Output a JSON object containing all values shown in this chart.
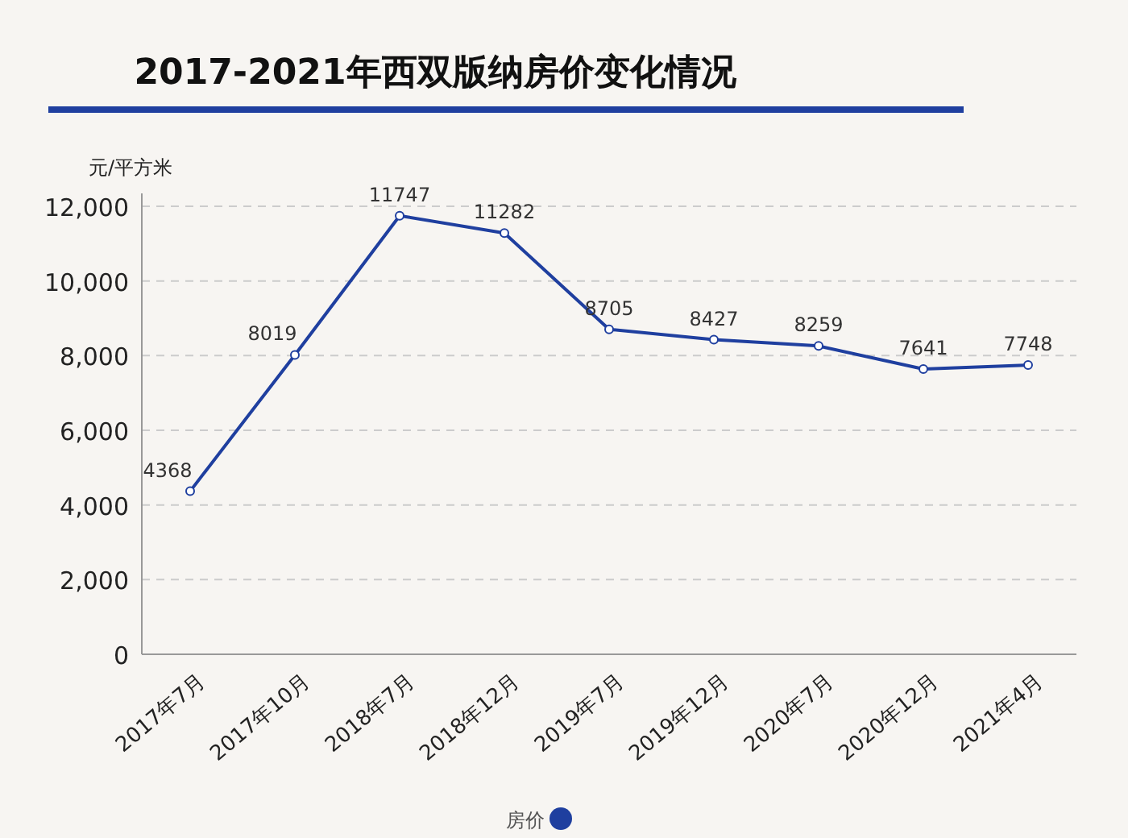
{
  "chart_data": {
    "type": "line",
    "title": "2017-2021年西双版纳房价变化情况",
    "ylabel": "元/平方米",
    "categories": [
      "2017年7月",
      "2017年10月",
      "2018年7月",
      "2018年12月",
      "2019年7月",
      "2019年12月",
      "2020年7月",
      "2020年12月",
      "2021年4月"
    ],
    "series": [
      {
        "name": "房价",
        "color": "#1f3f9f",
        "values": [
          4368,
          8019,
          11747,
          11282,
          8705,
          8427,
          8259,
          7641,
          7748
        ]
      }
    ],
    "ylim": [
      0,
      12000
    ],
    "yticks": [
      0,
      {
        "value": 2000,
        "label": "2,000"
      },
      {
        "value": 4000,
        "label": "4,000"
      },
      {
        "value": 6000,
        "label": "6,000"
      },
      {
        "value": 8000,
        "label": "8,000"
      },
      {
        "value": 10000,
        "label": "10,000"
      },
      {
        "value": 12000,
        "label": "12,000"
      }
    ],
    "grid": "y",
    "legend": "bottom",
    "marker": "circle",
    "data_labels": true
  }
}
